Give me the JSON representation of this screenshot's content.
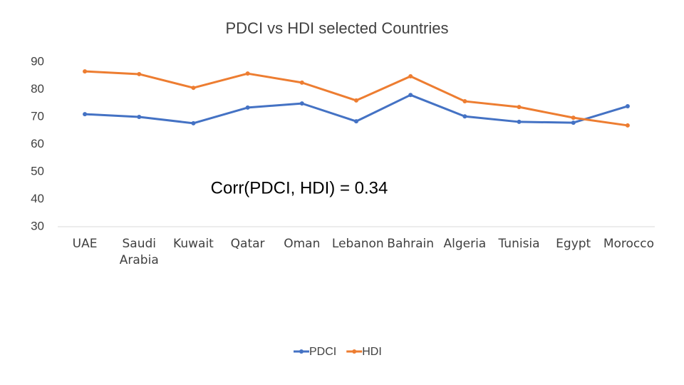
{
  "chart_data": {
    "type": "line",
    "title": "PDCI vs HDI selected Countries",
    "annotation": "Corr(PDCI, HDI) = 0.34",
    "categories": [
      "UAE",
      "Saudi Arabia",
      "Kuwait",
      "Qatar",
      "Oman",
      "Lebanon",
      "Bahrain",
      "Algeria",
      "Tunisia",
      "Egypt",
      "Morocco"
    ],
    "series": [
      {
        "name": "PDCI",
        "color": "#4472c4",
        "values": [
          71,
          70,
          67.7,
          73.4,
          74.9,
          68.4,
          78,
          70.2,
          68.2,
          67.9,
          73.9
        ]
      },
      {
        "name": "HDI",
        "color": "#ed7d31",
        "values": [
          86.6,
          85.6,
          80.6,
          85.8,
          82.5,
          76,
          84.8,
          75.7,
          73.6,
          69.7,
          66.9
        ]
      }
    ],
    "ylim": [
      30,
      90
    ],
    "yticks": [
      30,
      40,
      50,
      60,
      70,
      80,
      90
    ],
    "grid": false,
    "legend": "bottom"
  }
}
